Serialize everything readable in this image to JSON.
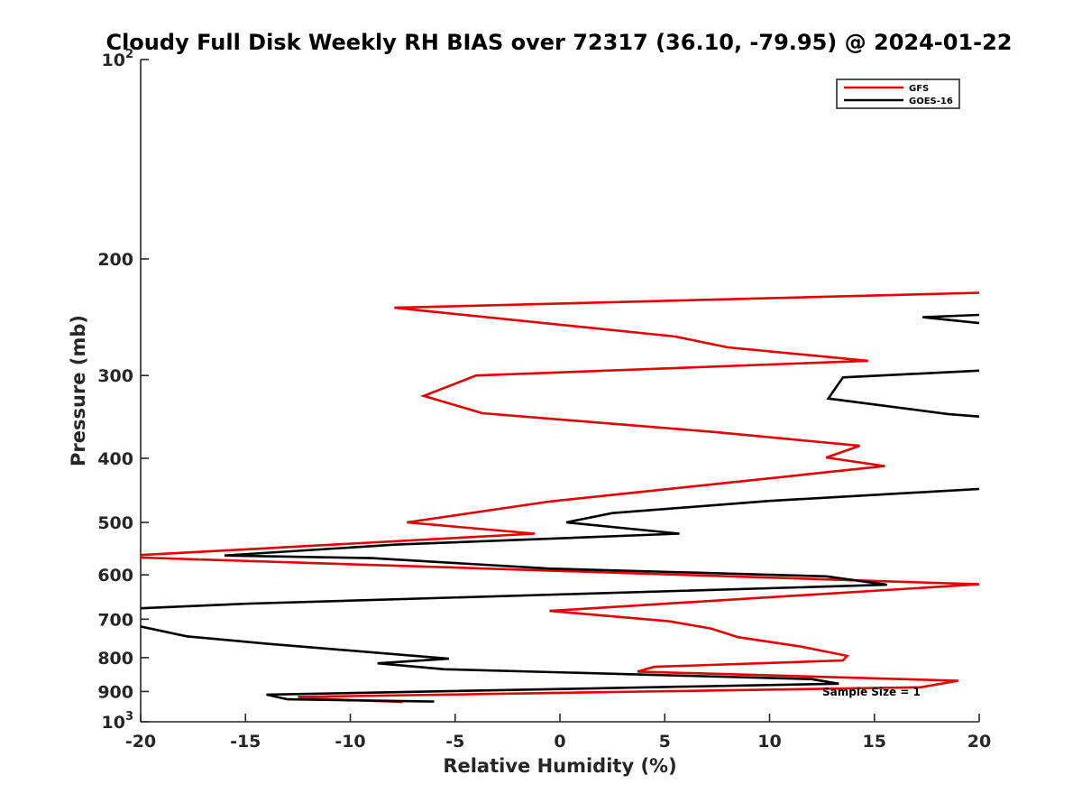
{
  "chart_data": {
    "type": "line",
    "title": "Cloudy Full Disk Weekly RH BIAS over 72317 (36.10, -79.95) @ 2024-01-22",
    "xlabel": "Relative Humidity (%)",
    "ylabel": "Pressure (mb)",
    "xlim": [
      -20,
      20
    ],
    "ylim": [
      100,
      1000
    ],
    "y_scale": "log",
    "y_reversed": true,
    "grid": false,
    "legend_position": "top-right",
    "x_ticks": [
      "-20",
      "-15",
      "-10",
      "-5",
      "0",
      "5",
      "10",
      "15",
      "20"
    ],
    "x_tick_values": [
      -20,
      -15,
      -10,
      -5,
      0,
      5,
      10,
      15,
      20
    ],
    "y_tick_values": [
      100,
      200,
      300,
      400,
      500,
      600,
      700,
      800,
      900,
      1000
    ],
    "y_ticks": [
      {
        "base": "10",
        "sup": "2"
      },
      {
        "base": "200",
        "sup": ""
      },
      {
        "base": "300",
        "sup": ""
      },
      {
        "base": "400",
        "sup": ""
      },
      {
        "base": "500",
        "sup": ""
      },
      {
        "base": "600",
        "sup": ""
      },
      {
        "base": "700",
        "sup": ""
      },
      {
        "base": "800",
        "sup": ""
      },
      {
        "base": "900",
        "sup": ""
      },
      {
        "base": "10",
        "sup": "3"
      }
    ],
    "annotation": "Sample Size = 1",
    "series": [
      {
        "name": "GFS",
        "color": "#e60000",
        "points": [
          [
            20,
            225
          ],
          [
            -7.9,
            237
          ],
          [
            5.5,
            262
          ],
          [
            8.0,
            272
          ],
          [
            14.7,
            285
          ],
          [
            -4.0,
            300
          ],
          [
            -6.5,
            322
          ],
          [
            -3.7,
            342
          ],
          [
            7.3,
            365
          ],
          [
            14.3,
            383
          ],
          [
            12.7,
            399
          ],
          [
            15.5,
            411
          ],
          [
            -0.5,
            465
          ],
          [
            -7.3,
            500
          ],
          [
            -1.2,
            520
          ],
          [
            -20,
            560
          ],
          [
            -20,
            565
          ],
          [
            20,
            620
          ],
          [
            -0.5,
            680
          ],
          [
            5.2,
            705
          ],
          [
            7.2,
            723
          ],
          [
            8.5,
            745
          ],
          [
            11.5,
            770
          ],
          [
            13.7,
            795
          ],
          [
            13.5,
            808
          ],
          [
            4.5,
            826
          ],
          [
            3.7,
            840
          ],
          [
            19.0,
            867
          ],
          [
            17.2,
            887
          ],
          [
            -12.5,
            917
          ],
          [
            -11.0,
            925
          ],
          [
            -7.5,
            933
          ]
        ]
      },
      {
        "name": "GOES-16",
        "color": "#000000",
        "points": [
          [
            20,
            243
          ],
          [
            17.3,
            245
          ],
          [
            20,
            250
          ],
          [
            null,
            null
          ],
          [
            20,
            295
          ],
          [
            13.5,
            302
          ],
          [
            12.8,
            325
          ],
          [
            18.5,
            343
          ],
          [
            20,
            346
          ],
          [
            null,
            null
          ],
          [
            20,
            445
          ],
          [
            10.0,
            464
          ],
          [
            2.5,
            484
          ],
          [
            0.3,
            500
          ],
          [
            5.7,
            520
          ],
          [
            -7.8,
            540
          ],
          [
            -16.0,
            561
          ],
          [
            -9.0,
            566
          ],
          [
            -0.5,
            587
          ],
          [
            12.7,
            603
          ],
          [
            15.6,
            621
          ],
          [
            -14.8,
            663
          ],
          [
            -20,
            674
          ],
          [
            null,
            null
          ],
          [
            -20,
            718
          ],
          [
            -17.8,
            743
          ],
          [
            -14.0,
            762
          ],
          [
            -5.3,
            803
          ],
          [
            -8.7,
            816
          ],
          [
            -5.5,
            833
          ],
          [
            12.0,
            862
          ],
          [
            13.3,
            876
          ],
          [
            -14.0,
            910
          ],
          [
            -13.0,
            925
          ],
          [
            -6.0,
            932
          ]
        ]
      }
    ]
  }
}
